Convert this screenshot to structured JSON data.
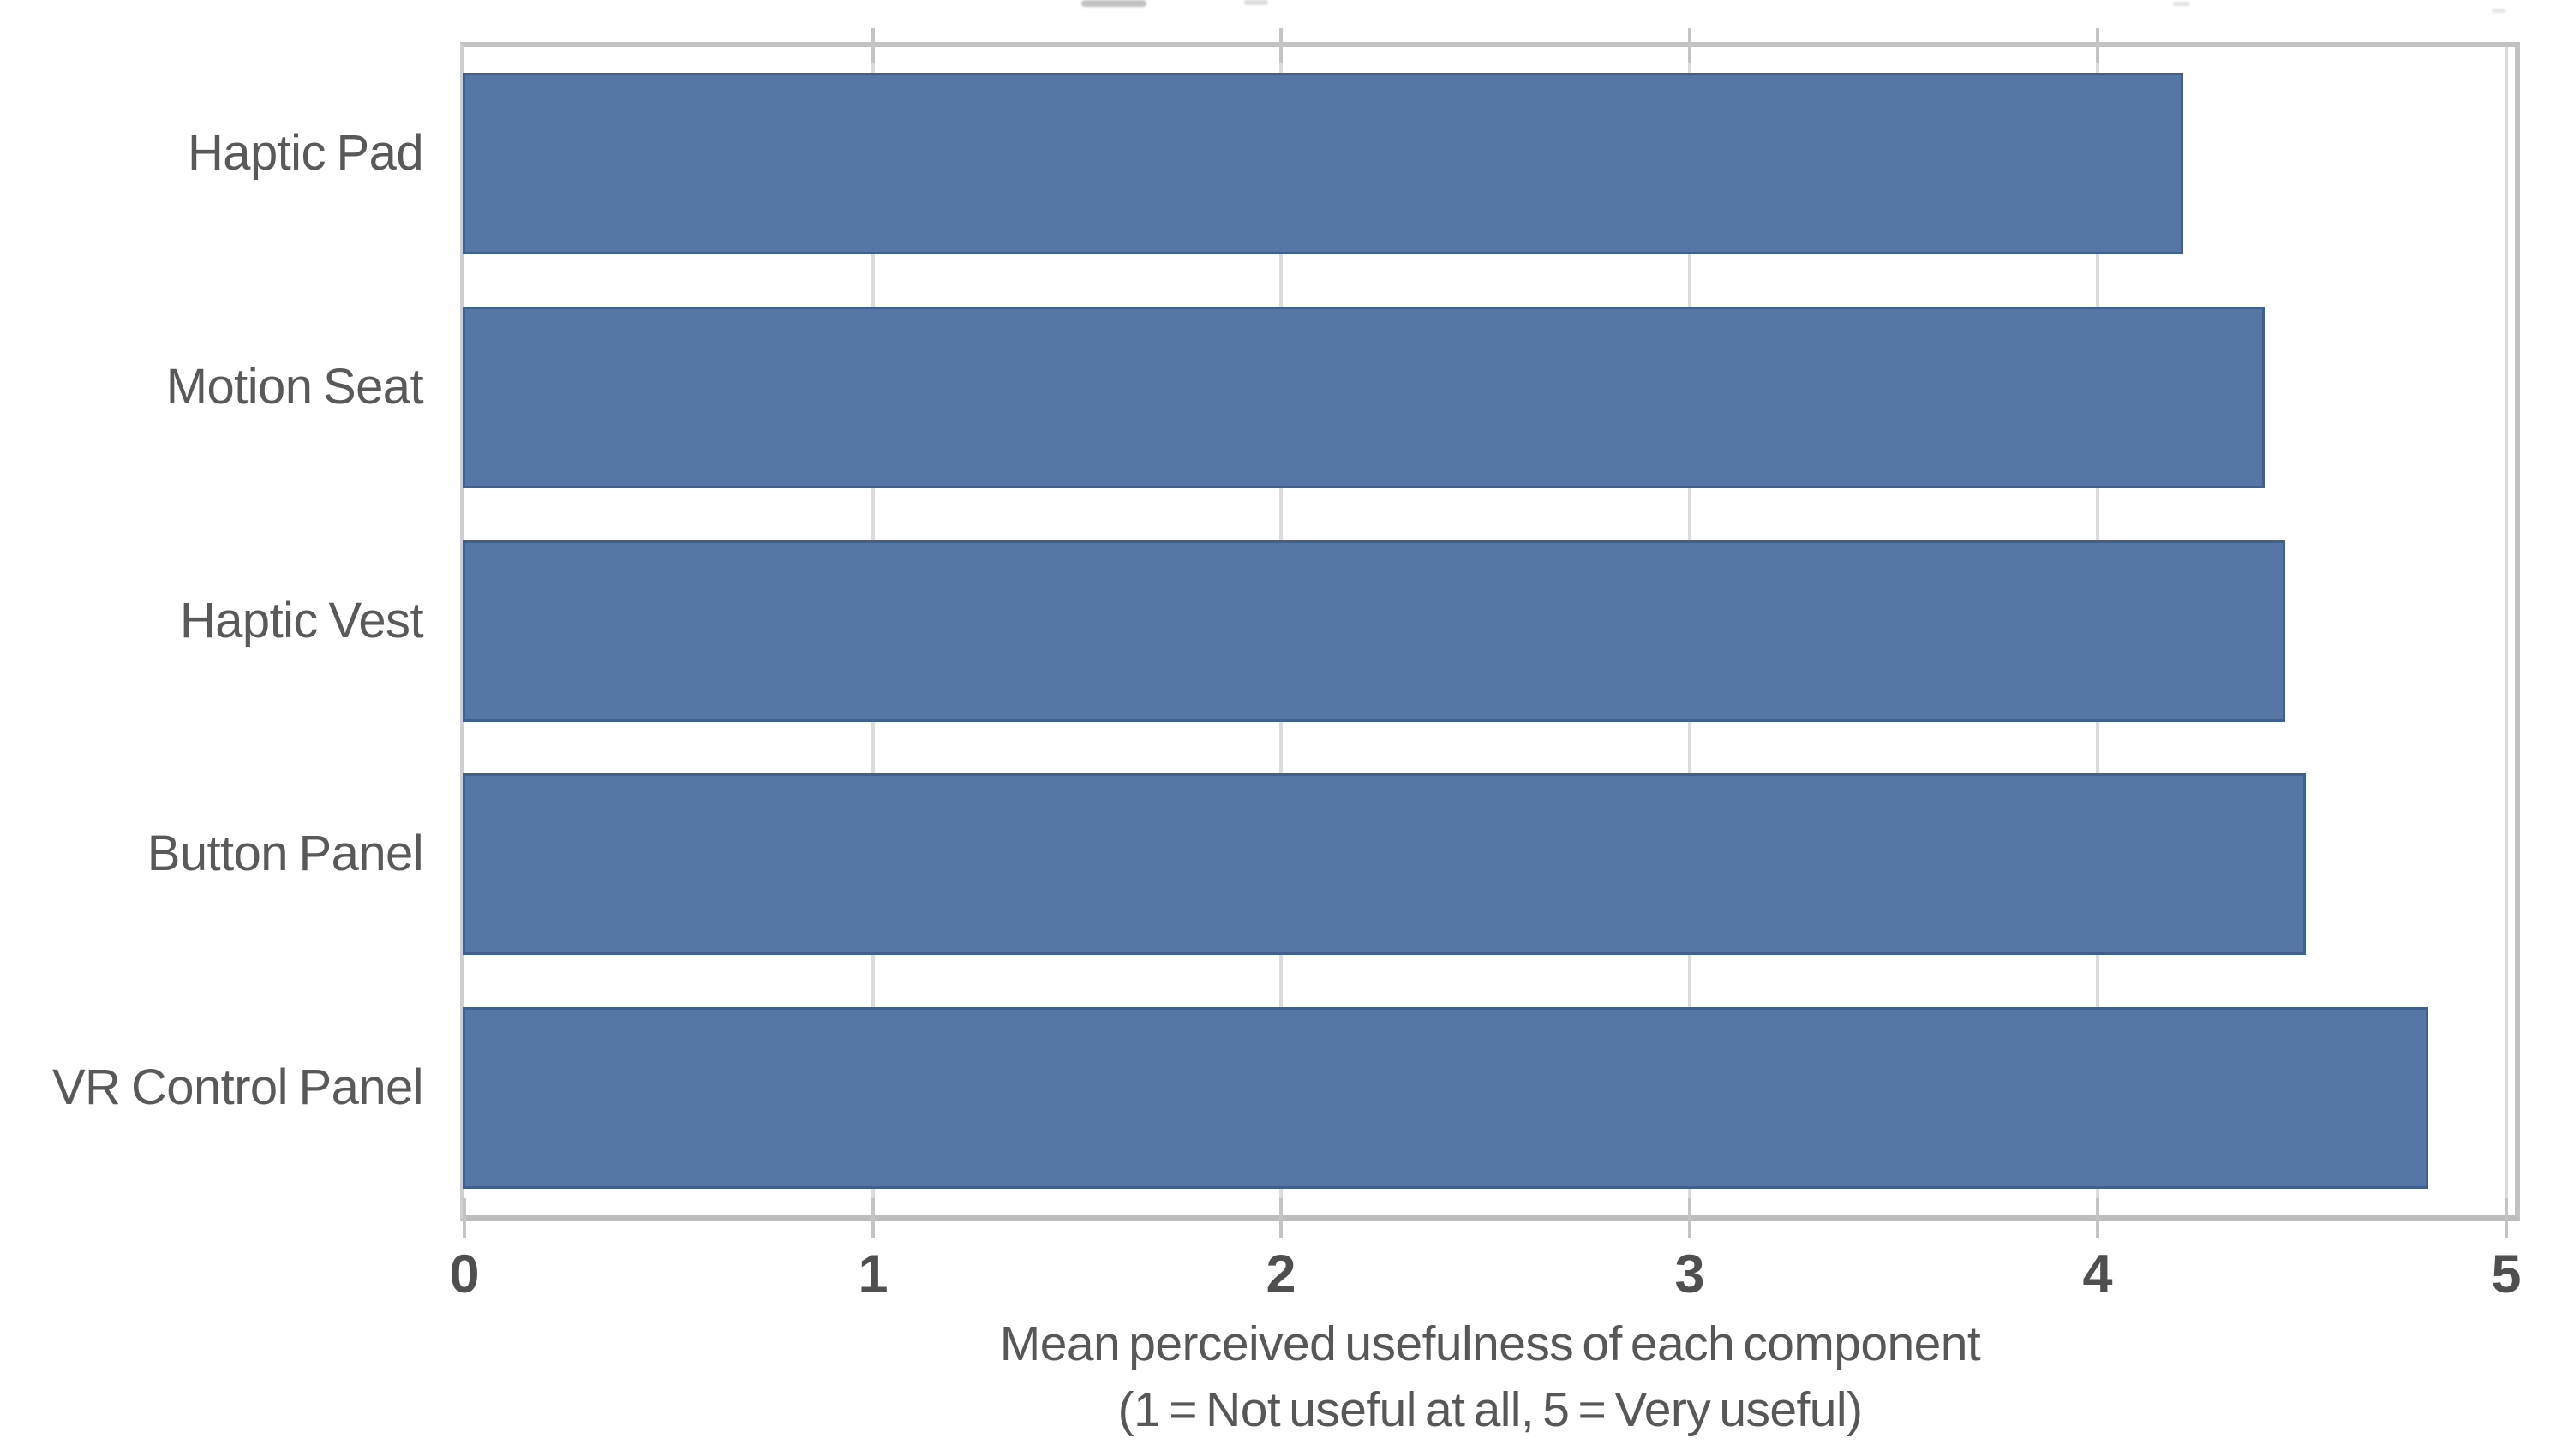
{
  "chart_data": {
    "type": "bar",
    "orientation": "horizontal",
    "title": "",
    "categories": [
      "Haptic Pad",
      "Motion Seat",
      "Haptic Vest",
      "Button Panel",
      "VR Control Panel"
    ],
    "values": [
      4.2,
      4.4,
      4.45,
      4.5,
      4.8
    ],
    "series": [
      {
        "name": "Mean perceived usefulness",
        "values": [
          4.2,
          4.4,
          4.45,
          4.5,
          4.8
        ]
      }
    ],
    "xlabel": "Mean perceived usefulness of each component",
    "xlabel_note": "(1 = Not useful at all, 5 = Very useful)",
    "ylabel": "",
    "xlim": [
      0,
      5
    ],
    "xticks": [
      0,
      1,
      2,
      3,
      4,
      5
    ],
    "grid": "vertical gridlines at integer ticks, drawn behind bars",
    "legend": "none",
    "colors": {
      "bar_fill": "#5677a6",
      "bar_border": "#40608f",
      "plot_border": "#c2c2c2",
      "gridline": "#dcdcdc",
      "tick_mark": "#c4c4c4",
      "axis_text": "#595959",
      "tick_label_text": "#4f4f4f",
      "background": "#ffffff"
    }
  }
}
